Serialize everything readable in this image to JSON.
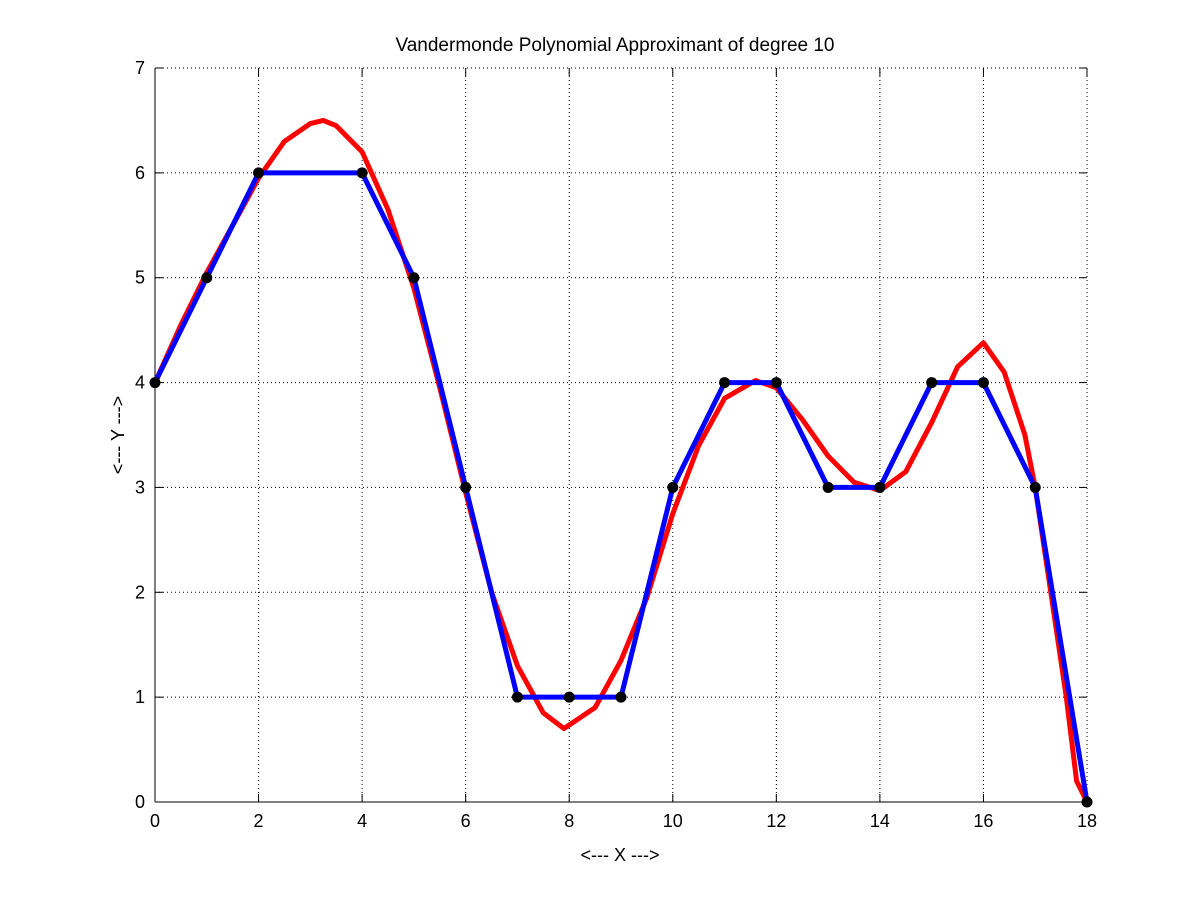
{
  "chart_data": {
    "type": "line",
    "title": "Vandermonde Polynomial Approximant of degree 10",
    "xlabel": "<--- X --->",
    "ylabel": "<--- Y --->",
    "xlim": [
      0,
      18
    ],
    "ylim": [
      0,
      7
    ],
    "xticks": [
      0,
      2,
      4,
      6,
      8,
      10,
      12,
      14,
      16,
      18
    ],
    "yticks": [
      0,
      1,
      2,
      3,
      4,
      5,
      6,
      7
    ],
    "grid": true,
    "series": [
      {
        "kind": "polynomial-curve",
        "color": "#ff0000",
        "x": [
          0,
          0.5,
          1,
          1.5,
          2,
          2.5,
          3,
          3.25,
          3.5,
          4,
          4.5,
          5,
          5.5,
          6,
          6.5,
          7,
          7.5,
          7.9,
          8.5,
          9,
          9.5,
          10,
          10.5,
          11,
          11.6,
          12,
          12.5,
          13,
          13.5,
          14,
          14.5,
          15,
          15.5,
          16,
          16.4,
          16.8,
          17,
          17.3,
          17.6,
          17.8,
          18
        ],
        "y": [
          4.0,
          4.55,
          5.05,
          5.5,
          5.95,
          6.3,
          6.47,
          6.5,
          6.45,
          6.2,
          5.65,
          4.9,
          3.95,
          2.95,
          2.0,
          1.3,
          0.85,
          0.7,
          0.9,
          1.35,
          1.95,
          2.75,
          3.4,
          3.85,
          4.02,
          3.95,
          3.65,
          3.3,
          3.05,
          2.97,
          3.15,
          3.62,
          4.15,
          4.38,
          4.1,
          3.5,
          3.0,
          2.0,
          1.0,
          0.2,
          0.0
        ]
      },
      {
        "kind": "data-polyline",
        "color": "#0000ff",
        "x": [
          0,
          1,
          2,
          4,
          5,
          6,
          7,
          8,
          9,
          10,
          11,
          12,
          13,
          14,
          15,
          16,
          17,
          18
        ],
        "y": [
          4,
          5,
          6,
          6,
          5,
          3,
          1,
          1,
          1,
          3,
          4,
          4,
          3,
          3,
          4,
          4,
          3,
          0
        ]
      }
    ],
    "markers": {
      "color": "#000000",
      "x": [
        0,
        1,
        2,
        4,
        5,
        6,
        7,
        8,
        9,
        10,
        11,
        12,
        13,
        14,
        15,
        16,
        17,
        18
      ],
      "y": [
        4,
        5,
        6,
        6,
        5,
        3,
        1,
        1,
        1,
        3,
        4,
        4,
        3,
        3,
        4,
        4,
        3,
        0
      ]
    }
  }
}
